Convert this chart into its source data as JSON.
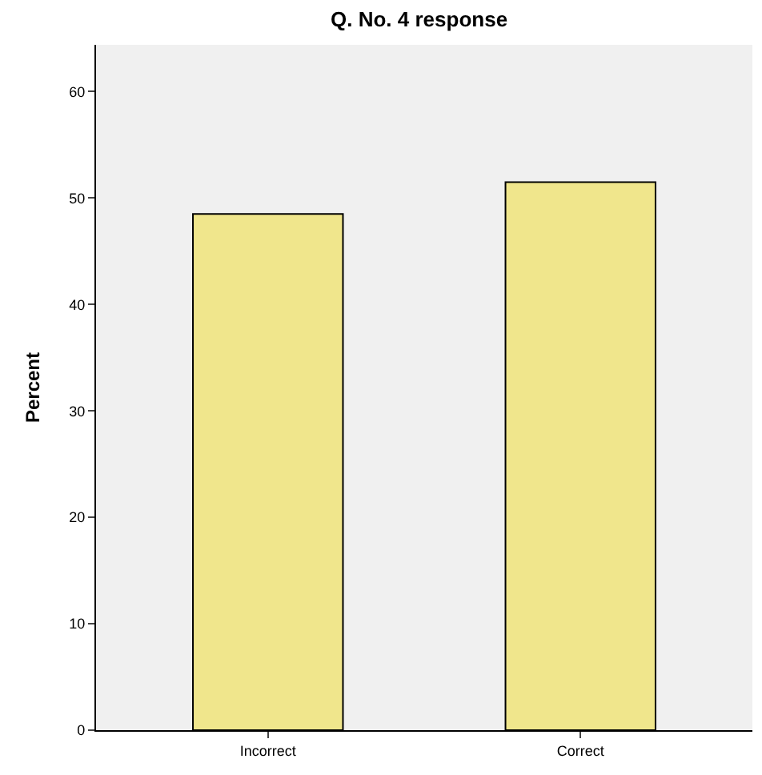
{
  "chart_data": {
    "type": "bar",
    "title": "Q. No. 4 response",
    "ylabel": "Percent",
    "categories": [
      "Incorrect",
      "Correct"
    ],
    "values": [
      48.5,
      51.5
    ],
    "color": "#f0e68c",
    "ylim": [
      0,
      64.4
    ],
    "yticks": [
      0,
      10,
      20,
      30,
      40,
      50,
      60
    ],
    "grid": false
  }
}
